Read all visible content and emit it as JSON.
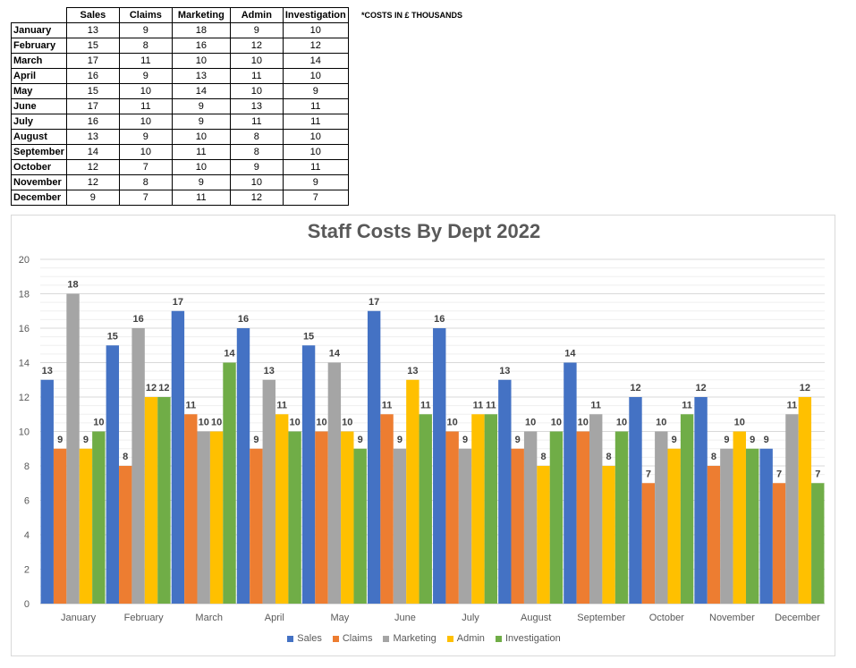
{
  "table": {
    "headers": [
      "",
      "Sales",
      "Claims",
      "Marketing",
      "Admin",
      "Investigation"
    ],
    "rows": [
      {
        "month": "January",
        "values": [
          13,
          9,
          18,
          9,
          10
        ]
      },
      {
        "month": "February",
        "values": [
          15,
          8,
          16,
          12,
          12
        ]
      },
      {
        "month": "March",
        "values": [
          17,
          11,
          10,
          10,
          14
        ]
      },
      {
        "month": "April",
        "values": [
          16,
          9,
          13,
          11,
          10
        ]
      },
      {
        "month": "May",
        "values": [
          15,
          10,
          14,
          10,
          9
        ]
      },
      {
        "month": "June",
        "values": [
          17,
          11,
          9,
          13,
          11
        ]
      },
      {
        "month": "July",
        "values": [
          16,
          10,
          9,
          11,
          11
        ]
      },
      {
        "month": "August",
        "values": [
          13,
          9,
          10,
          8,
          10
        ]
      },
      {
        "month": "September",
        "values": [
          14,
          10,
          11,
          8,
          10
        ]
      },
      {
        "month": "October",
        "values": [
          12,
          7,
          10,
          9,
          11
        ]
      },
      {
        "month": "November",
        "values": [
          12,
          8,
          9,
          10,
          9
        ]
      },
      {
        "month": "December",
        "values": [
          9,
          7,
          11,
          12,
          7
        ]
      }
    ]
  },
  "note": "*COSTS IN £ THOUSANDS",
  "chart_data": {
    "type": "bar",
    "title": "Staff Costs By Dept 2022",
    "xlabel": "",
    "ylabel": "",
    "ylim": [
      0,
      20
    ],
    "yticks": [
      0,
      2,
      4,
      6,
      8,
      10,
      12,
      14,
      16,
      18,
      20
    ],
    "grid": true,
    "legend_position": "bottom",
    "categories": [
      "January",
      "February",
      "March",
      "April",
      "May",
      "June",
      "July",
      "August",
      "September",
      "October",
      "November",
      "December"
    ],
    "series": [
      {
        "name": "Sales",
        "color": "#4472C4",
        "values": [
          13,
          15,
          17,
          16,
          15,
          17,
          16,
          13,
          14,
          12,
          12,
          9
        ]
      },
      {
        "name": "Claims",
        "color": "#ED7D31",
        "values": [
          9,
          8,
          11,
          9,
          10,
          11,
          10,
          9,
          10,
          7,
          8,
          7
        ]
      },
      {
        "name": "Marketing",
        "color": "#A5A5A5",
        "values": [
          18,
          16,
          10,
          13,
          14,
          9,
          9,
          10,
          11,
          10,
          9,
          11
        ]
      },
      {
        "name": "Admin",
        "color": "#FFC000",
        "values": [
          9,
          12,
          10,
          11,
          10,
          13,
          11,
          8,
          8,
          9,
          10,
          12
        ]
      },
      {
        "name": "Investigation",
        "color": "#70AD47",
        "values": [
          10,
          12,
          14,
          10,
          9,
          11,
          11,
          10,
          10,
          11,
          9,
          7
        ]
      }
    ]
  }
}
